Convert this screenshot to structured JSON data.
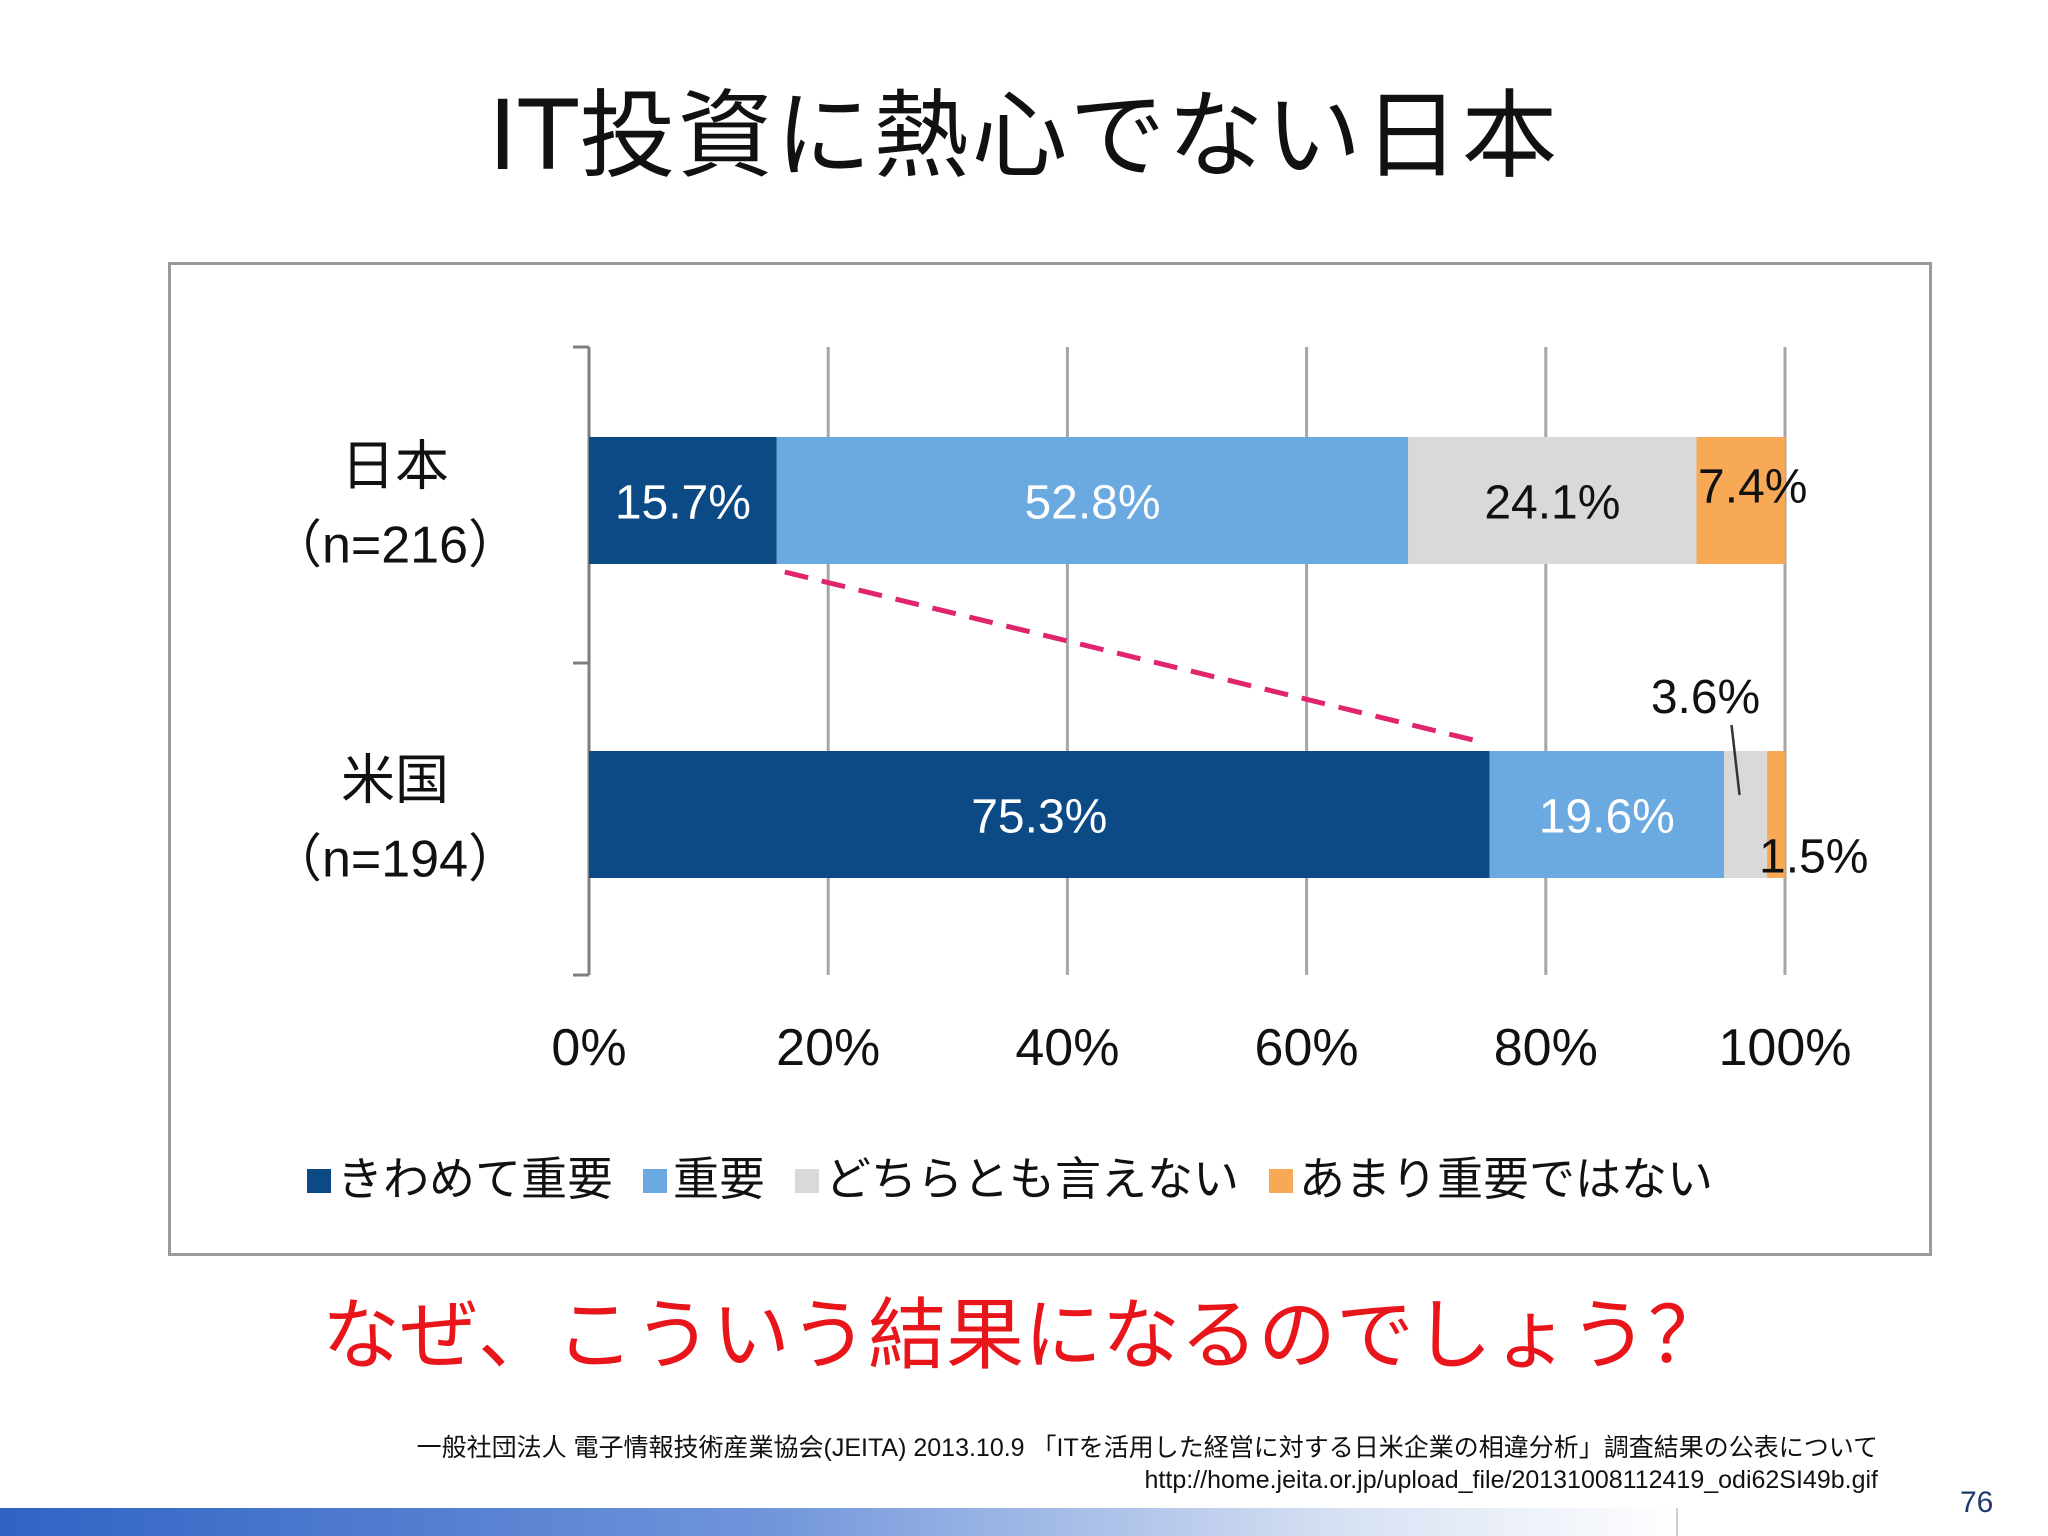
{
  "slide": {
    "title": "IT投資に熱心でない日本",
    "question": "なぜ、こういう結果になるのでしょう？",
    "source_line1": "一般社団法人 電子情報技術産業協会(JEITA)  2013.10.9  「ITを活用した経営に対する日米企業の相違分析」調査結果の公表について",
    "source_line2": "http://home.jeita.or.jp/upload_file/20131008112419_odi62SI49b.gif",
    "page_number": "76"
  },
  "chart_data": {
    "type": "bar",
    "orientation": "horizontal",
    "stacked": "percent",
    "categories": [
      {
        "label": "日本",
        "sublabel": "（n=216）"
      },
      {
        "label": "米国",
        "sublabel": "（n=194）"
      }
    ],
    "series": [
      {
        "name": "きわめて重要",
        "color": "#0c4a86",
        "label_color": "#ffffff",
        "values": [
          15.7,
          75.3
        ],
        "labels": [
          "15.7%",
          "75.3%"
        ]
      },
      {
        "name": "重要",
        "color": "#6aaae0",
        "label_color": "#ffffff",
        "values": [
          52.8,
          19.6
        ],
        "labels": [
          "52.8%",
          "19.6%"
        ]
      },
      {
        "name": "どちらとも言えない",
        "color": "#d9d9d9",
        "label_color": "#111111",
        "values": [
          24.1,
          3.6
        ],
        "labels": [
          "24.1%",
          "3.6%"
        ]
      },
      {
        "name": "あまり重要ではない",
        "color": "#f7a955",
        "label_color": "#111111",
        "values": [
          7.4,
          1.5
        ],
        "labels": [
          "7.4%",
          "1.5%"
        ]
      }
    ],
    "x_ticks": [
      "0%",
      "20%",
      "40%",
      "60%",
      "80%",
      "100%"
    ],
    "xlim": [
      0,
      100
    ],
    "grid": true,
    "legend": "bottom",
    "annotation": {
      "type": "dashed-line",
      "color": "#e0246e",
      "from_value": 15.7,
      "to_value": 75.3
    }
  }
}
